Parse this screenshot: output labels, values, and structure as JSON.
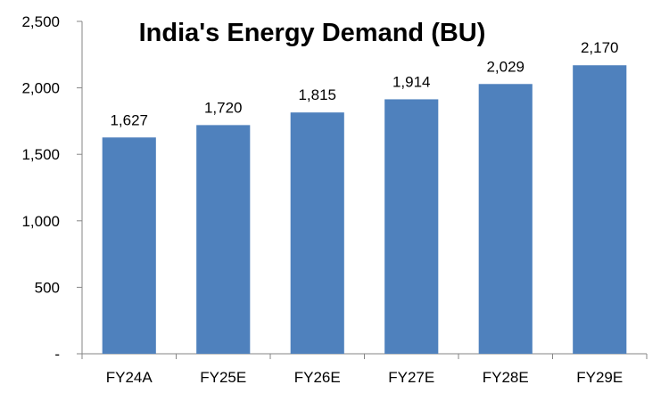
{
  "chart_data": {
    "type": "bar",
    "title": "India's Energy Demand (BU)",
    "xlabel": "",
    "ylabel": "",
    "categories": [
      "FY24A",
      "FY25E",
      "FY26E",
      "FY27E",
      "FY28E",
      "FY29E"
    ],
    "values": [
      1627,
      1720,
      1815,
      1914,
      2029,
      2170
    ],
    "data_labels": [
      "1,627",
      "1,720",
      "1,815",
      "1,914",
      "2,029",
      "2,170"
    ],
    "ylim": [
      0,
      2500
    ],
    "y_ticks": [
      0,
      500,
      1000,
      1500,
      2000,
      2500
    ],
    "y_tick_labels": [
      "-",
      "500",
      "1,000",
      "1,500",
      "2,000",
      "2,500"
    ],
    "grid": false,
    "legend": "none",
    "colors": {
      "bar": "#4F81BD",
      "axis": "#868686",
      "text": "#000000"
    }
  }
}
